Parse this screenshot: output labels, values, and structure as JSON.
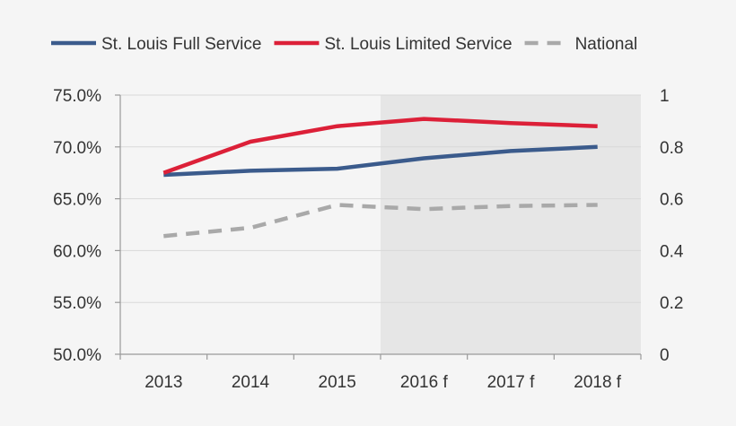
{
  "chart_data": {
    "type": "line",
    "title": "",
    "categories": [
      "2013",
      "2014",
      "2015",
      "2016 f",
      "2017 f",
      "2018 f"
    ],
    "forecast_start_index": 3,
    "left_axis": {
      "ylim": [
        0.5,
        0.75
      ],
      "ticks": [
        0.5,
        0.55,
        0.6,
        0.65,
        0.7,
        0.75
      ],
      "tick_labels": [
        "50.0%",
        "55.0%",
        "60.0%",
        "65.0%",
        "70.0%",
        "75.0%"
      ]
    },
    "right_axis": {
      "ylim": [
        0,
        1
      ],
      "ticks": [
        0,
        0.2,
        0.4,
        0.6,
        0.8,
        1
      ],
      "tick_labels": [
        "0",
        "0.2",
        "0.4",
        "0.6",
        "0.8",
        "1"
      ]
    },
    "series": [
      {
        "name": "St. Louis Full Service",
        "values": [
          0.673,
          0.677,
          0.679,
          0.689,
          0.696,
          0.7
        ],
        "color": "#3b5b8c",
        "dash": "solid"
      },
      {
        "name": "St. Louis Limited Service",
        "values": [
          0.675,
          0.705,
          0.72,
          0.727,
          0.723,
          0.72
        ],
        "color": "#dc2038",
        "dash": "solid"
      },
      {
        "name": "National",
        "values": [
          0.614,
          0.622,
          0.644,
          0.64,
          0.643,
          0.644
        ],
        "color": "#a9a9a9",
        "dash": "dashed"
      }
    ],
    "colors": {
      "forecast_shade": "#e6e6e6",
      "gridline": "#d9d9d9",
      "axis": "#9a9a9a"
    },
    "grid": true,
    "legend_position": "top"
  }
}
